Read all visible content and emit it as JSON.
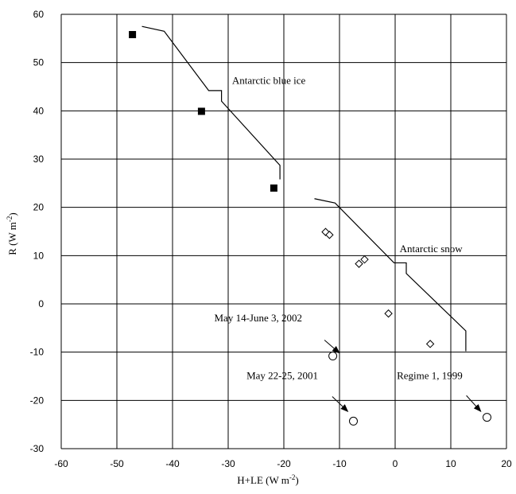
{
  "chart_data": {
    "type": "scatter",
    "xlabel": "H+LE (W m",
    "xlabel_sup": "-2",
    "xlabel_end": ")",
    "ylabel": "R (W  m",
    "ylabel_sup": "-2",
    "ylabel_end": ")",
    "xlim": [
      -60,
      20
    ],
    "ylim": [
      -30,
      60
    ],
    "xticks": [
      -60,
      -50,
      -40,
      -30,
      -20,
      -10,
      0,
      10,
      20
    ],
    "yticks": [
      -30,
      -20,
      -10,
      0,
      10,
      20,
      30,
      40,
      50,
      60
    ],
    "grid": true,
    "series": [
      {
        "marker": "filled-square",
        "points": [
          [
            -47.2,
            55.8
          ],
          [
            -34.8,
            39.9
          ],
          [
            -21.8,
            24.0
          ]
        ]
      },
      {
        "marker": "open-diamond",
        "points": [
          [
            -12.5,
            14.9
          ],
          [
            -11.8,
            14.3
          ],
          [
            -6.5,
            8.3
          ],
          [
            -5.5,
            9.2
          ],
          [
            -1.2,
            -2.0
          ],
          [
            6.3,
            -8.3
          ]
        ]
      },
      {
        "marker": "open-circle",
        "points": [
          [
            -11.2,
            -10.8
          ],
          [
            -7.5,
            -24.3
          ],
          [
            16.5,
            -23.5
          ]
        ]
      }
    ],
    "lines": [
      {
        "name": "Antarctic blue ice",
        "points": [
          [
            -45.5,
            57.5
          ],
          [
            -41.5,
            56.5
          ],
          [
            -33.5,
            44.2
          ],
          [
            -31.2,
            44.2
          ],
          [
            -31.2,
            42.0
          ],
          [
            -20.7,
            28.7
          ],
          [
            -20.7,
            25.8
          ]
        ]
      },
      {
        "name": "Antarctic snow",
        "points": [
          [
            -14.5,
            21.8
          ],
          [
            -10.8,
            20.9
          ],
          [
            -0.2,
            8.5
          ],
          [
            2.0,
            8.5
          ],
          [
            2.0,
            6.3
          ],
          [
            12.7,
            -5.6
          ],
          [
            12.7,
            -9.8
          ]
        ]
      }
    ],
    "labels": [
      {
        "id": "blue_ice",
        "text": "Antarctic blue ice",
        "x": -29.3,
        "y": 45.6
      },
      {
        "id": "snow",
        "text": "Antarctic snow",
        "x": 0.8,
        "y": 10.7
      }
    ],
    "annotations": [
      {
        "id": "a2002",
        "text": "May 14-June 3, 2002",
        "x": -32.5,
        "y": -3.6,
        "from": [
          -12.7,
          -7.5
        ],
        "to": [
          -10.0,
          -10.2
        ]
      },
      {
        "id": "a2001",
        "text": "May 22-25, 2001",
        "x": -26.7,
        "y": -15.6,
        "from": [
          -11.3,
          -19.2
        ],
        "to": [
          -8.5,
          -22.3
        ]
      },
      {
        "id": "a1999",
        "text": "Regime 1, 1999",
        "x": 0.3,
        "y": -15.6,
        "from": [
          12.8,
          -19.0
        ],
        "to": [
          15.4,
          -22.3
        ]
      }
    ]
  }
}
